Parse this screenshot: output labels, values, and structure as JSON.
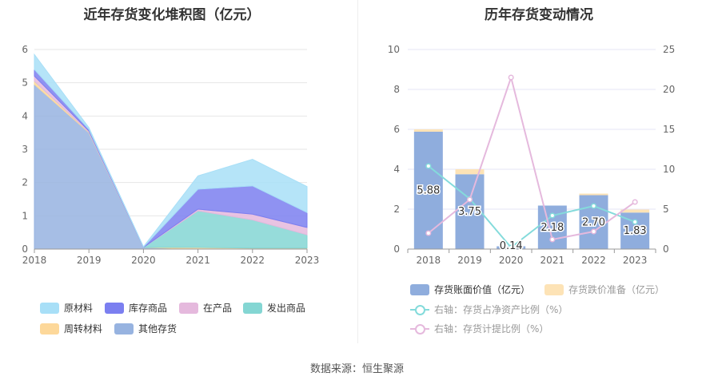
{
  "left_title": "近年存货变化堆积图（亿元）",
  "right_title": "历年存货变动情况",
  "source": "数据来源：恒生聚源",
  "colors": {
    "raw": "#a8dff7",
    "stock": "#7b7ff0",
    "wip": "#e5b9dd",
    "shipped": "#84d6d3",
    "turnover": "#fdd89a",
    "other": "#97b3e0",
    "bar_book": "#8faddd",
    "bar_reserve": "#fde3b6",
    "line_ratio": "#84dbdb",
    "line_provision": "#e5b9dd"
  },
  "left_legend": [
    "原材料",
    "库存商品",
    "在产品",
    "发出商品",
    "周转材料",
    "其他存货"
  ],
  "right_legend": [
    "存货账面价值（亿元）",
    "存货跌价准备（亿元）",
    "右轴：存货占净资产比例（%）",
    "右轴：存货计提比例（%）"
  ],
  "chart_data": [
    {
      "type": "area",
      "stacked": true,
      "title": "近年存货变化堆积图（亿元）",
      "x": [
        "2018",
        "2019",
        "2020",
        "2021",
        "2022",
        "2023"
      ],
      "ylim": [
        0,
        6
      ],
      "yticks": [
        "0",
        "1",
        "2",
        "3",
        "4",
        "5",
        "6"
      ],
      "grid": true,
      "legend_position": "bottom",
      "series": [
        {
          "name": "其他存货",
          "values": [
            4.95,
            3.5,
            0.05,
            0,
            0,
            0
          ]
        },
        {
          "name": "周转材料",
          "values": [
            0.1,
            0.02,
            0,
            0.05,
            0.03,
            0.03
          ]
        },
        {
          "name": "发出商品",
          "values": [
            0,
            0,
            0,
            1.1,
            0.85,
            0.4
          ]
        },
        {
          "name": "在产品",
          "values": [
            0.15,
            0.03,
            0,
            0.05,
            0.17,
            0.22
          ]
        },
        {
          "name": "库存商品",
          "values": [
            0.2,
            0.05,
            0.01,
            0.6,
            0.85,
            0.45
          ]
        },
        {
          "name": "原材料",
          "values": [
            0.45,
            0.05,
            0.01,
            0.4,
            0.8,
            0.78
          ]
        }
      ]
    },
    {
      "type": "bar",
      "title": "历年存货变动情况",
      "categories": [
        "2018",
        "2019",
        "2020",
        "2021",
        "2022",
        "2023"
      ],
      "ylim_left": [
        0,
        10
      ],
      "ylim_right": [
        0,
        25
      ],
      "yticks_left": [
        "0",
        "2",
        "4",
        "6",
        "8",
        "10"
      ],
      "yticks_right": [
        "0",
        "5",
        "10",
        "15",
        "20",
        "25"
      ],
      "grid": true,
      "legend_position": "bottom",
      "series": [
        {
          "name": "存货账面价值（亿元）",
          "kind": "bar",
          "values": [
            5.88,
            3.75,
            0.14,
            2.18,
            2.7,
            1.83
          ],
          "labels": [
            "5.88",
            "3.75",
            "0.14",
            "2.18",
            "2.70",
            "1.83"
          ]
        },
        {
          "name": "存货跌价准备（亿元）",
          "kind": "bar-stack",
          "values": [
            0.12,
            0.25,
            0.0,
            0.0,
            0.08,
            0.15
          ]
        },
        {
          "name": "右轴：存货占净资产比例（%）",
          "kind": "line",
          "axis": "right",
          "values": [
            10.4,
            6.3,
            0.2,
            4.2,
            5.4,
            3.4
          ]
        },
        {
          "name": "右轴：存货计提比例（%）",
          "kind": "line",
          "axis": "right",
          "values": [
            2.0,
            6.2,
            21.5,
            1.2,
            2.2,
            5.9
          ]
        }
      ]
    }
  ]
}
